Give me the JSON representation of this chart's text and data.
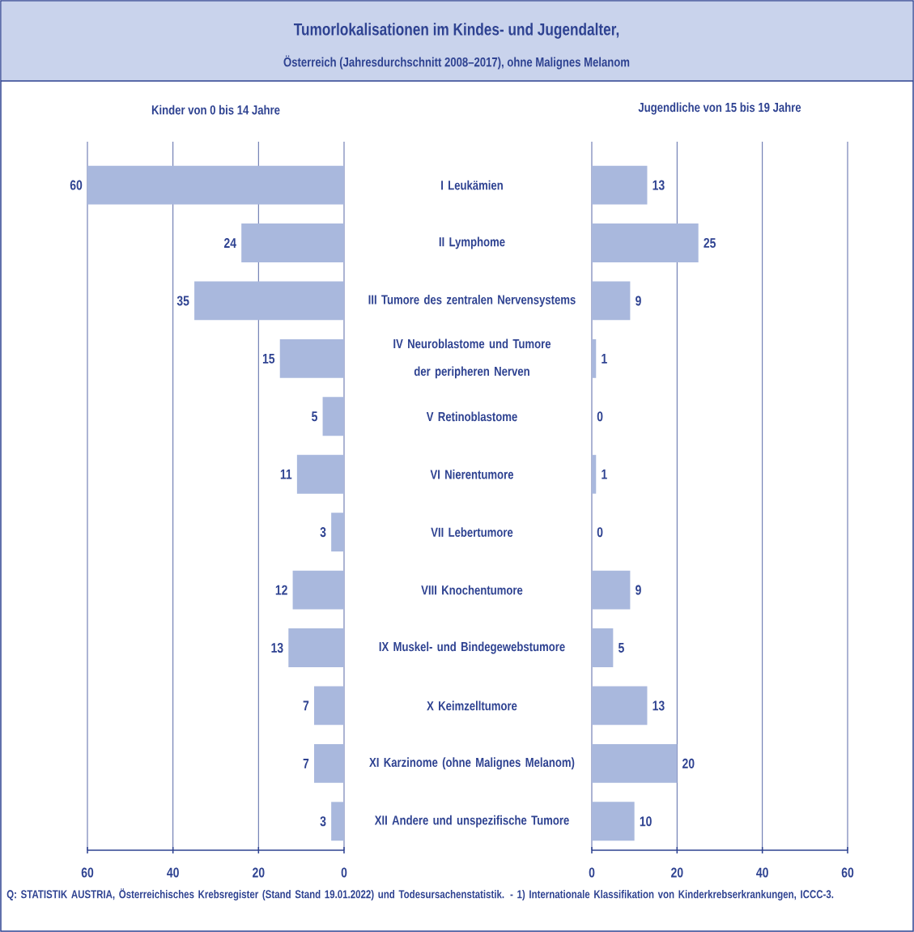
{
  "chart_data": [
    {
      "type": "other",
      "title": "Tumorlokalisationen im Kindes- und Jugendalter,",
      "subtitle": "Österreich (Jahresdurchschnitt 2008–2017), ohne Malignes Melanom",
      "annotations": [
        "Q: STATISTIK AUSTRIA, Österreichisches Krebsregister (Stand Stand 19.01.2022) und Todesursachenstatistik. - 1) Internationale Klassifikation von Kinderkrebserkrankungen, ICCC-3."
      ]
    },
    {
      "type": "bar",
      "orientation": "horizontal",
      "title": "Kinder von 0 bis 14 Jahre",
      "categories": [
        "I Leukämien",
        "II Lymphome",
        "III Tumore des zentralen Nervensystems",
        "IV Neuroblastome und Tumore der peripheren Nerven",
        "V Retinoblastome",
        "VI Nierentumore",
        "VII Lebertumore",
        "VIII Knochentumore",
        "IX Muskel- und Bindegewebstumore",
        "X Keimzelltumore",
        "XI Karzinome (ohne Malignes Melanom)",
        "XII Andere und unspezifische Tumore"
      ],
      "values": [
        60,
        24,
        35,
        15,
        5,
        11,
        3,
        12,
        13,
        7,
        7,
        3
      ],
      "color": "#a9b8dd",
      "xlim": [
        60,
        0
      ],
      "xticks": [
        60,
        40,
        20,
        0
      ],
      "grid": "x",
      "data_labels": true
    },
    {
      "type": "bar",
      "orientation": "horizontal",
      "title": "Jugendliche von 15 bis 19 Jahre",
      "values": [
        13,
        25,
        9,
        1,
        0,
        1,
        0,
        9,
        5,
        13,
        20,
        10
      ],
      "color": "#a9b8dd",
      "xlim": [
        0,
        60
      ],
      "xticks": [
        0,
        20,
        40,
        60
      ],
      "grid": "x",
      "data_labels": true,
      "tick_labels": "x"
    }
  ]
}
